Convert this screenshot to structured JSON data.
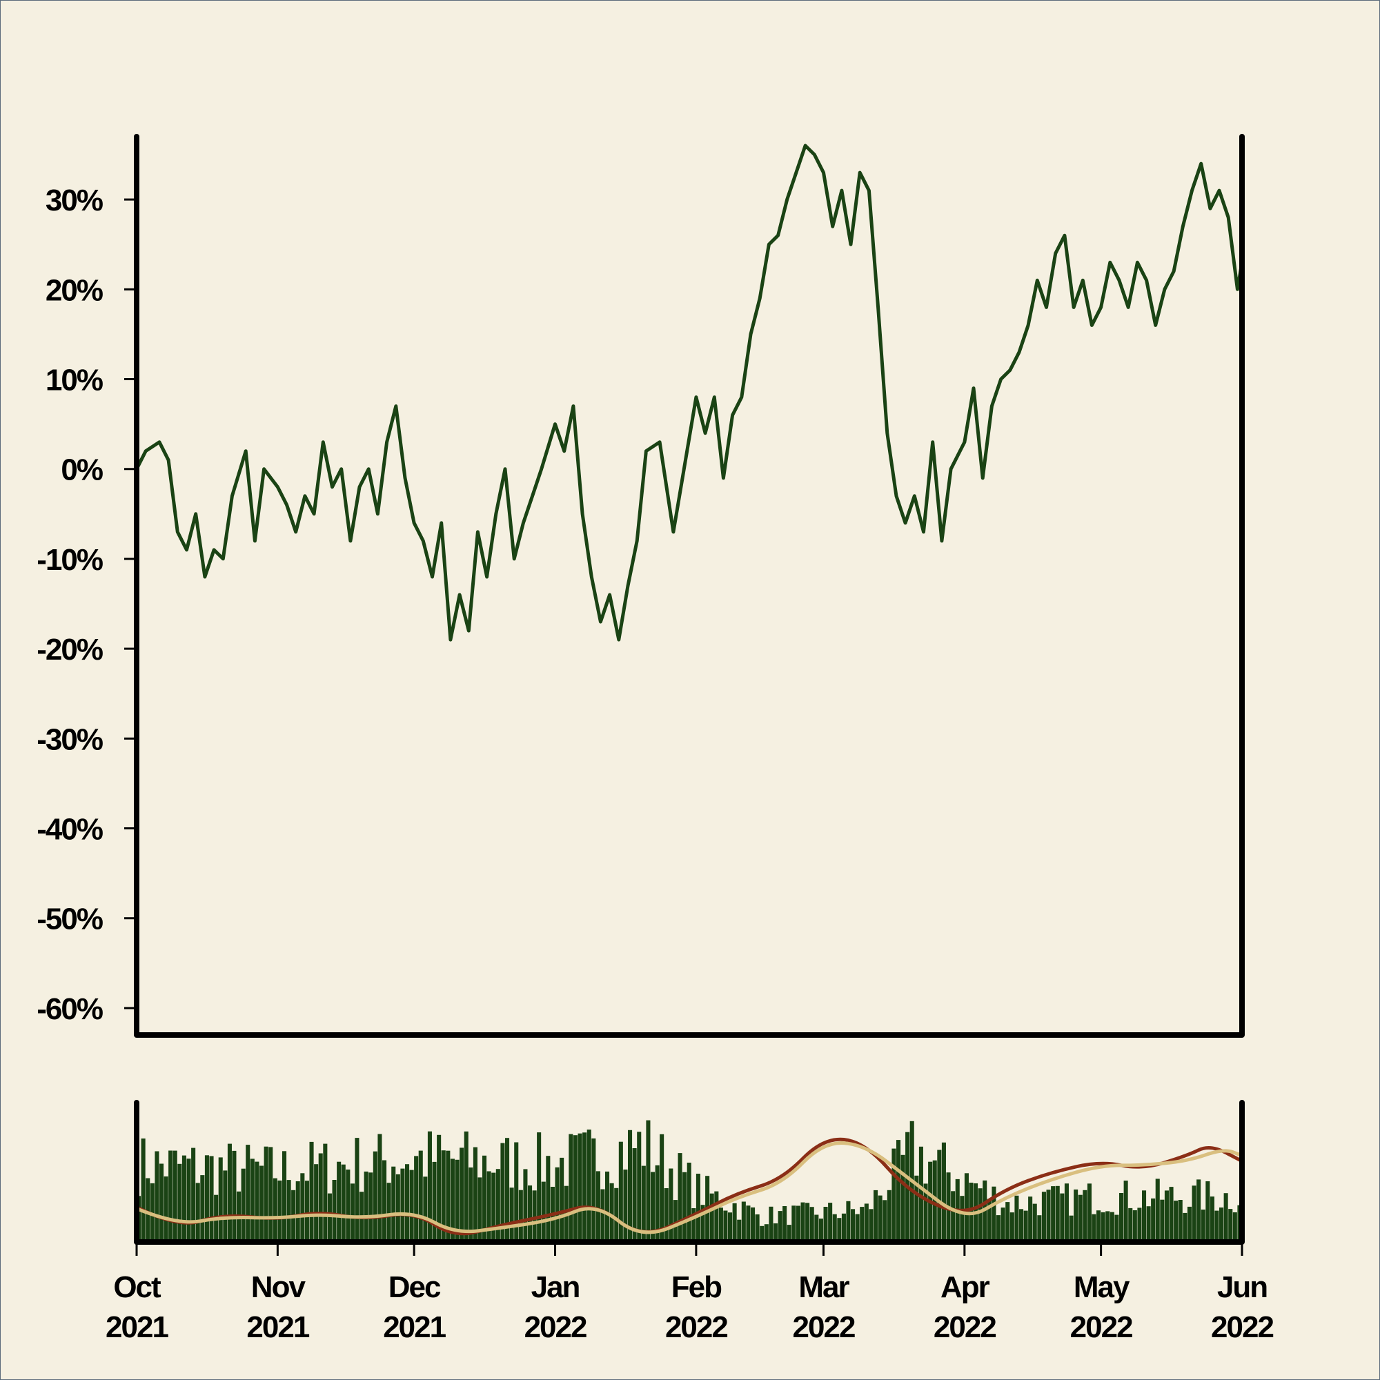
{
  "chart_data": [
    {
      "type": "line",
      "title": "",
      "xlabel": "",
      "ylabel": "",
      "ylim": [
        -0.63,
        0.37
      ],
      "yticks": [
        {
          "value": 0.3,
          "label": "30%"
        },
        {
          "value": 0.2,
          "label": "20%"
        },
        {
          "value": 0.1,
          "label": "10%"
        },
        {
          "value": 0.0,
          "label": "0%"
        },
        {
          "value": -0.1,
          "label": "-10%"
        },
        {
          "value": -0.2,
          "label": "-20%"
        },
        {
          "value": -0.3,
          "label": "-30%"
        },
        {
          "value": -0.4,
          "label": "-40%"
        },
        {
          "value": -0.5,
          "label": "-50%"
        },
        {
          "value": -0.6,
          "label": "-60%"
        }
      ],
      "xlim": [
        "2021-10-01",
        "2022-06-01"
      ],
      "color": "#1a4314",
      "series": [
        {
          "x": [
            "2021-10-01",
            "2021-10-03",
            "2021-10-06",
            "2021-10-08",
            "2021-10-10",
            "2021-10-12",
            "2021-10-14",
            "2021-10-16",
            "2021-10-18",
            "2021-10-20",
            "2021-10-22",
            "2021-10-25",
            "2021-10-27",
            "2021-10-29",
            "2021-11-01",
            "2021-11-03",
            "2021-11-05",
            "2021-11-07",
            "2021-11-09",
            "2021-11-11",
            "2021-11-13",
            "2021-11-15",
            "2021-11-17",
            "2021-11-19",
            "2021-11-21",
            "2021-11-23",
            "2021-11-25",
            "2021-11-27",
            "2021-11-29",
            "2021-12-01",
            "2021-12-03",
            "2021-12-05",
            "2021-12-07",
            "2021-12-09",
            "2021-12-11",
            "2021-12-13",
            "2021-12-15",
            "2021-12-17",
            "2021-12-19",
            "2021-12-21",
            "2021-12-23",
            "2021-12-25",
            "2021-12-27",
            "2021-12-29",
            "2022-01-01",
            "2022-01-03",
            "2022-01-05",
            "2022-01-07",
            "2022-01-09",
            "2022-01-11",
            "2022-01-13",
            "2022-01-15",
            "2022-01-17",
            "2022-01-19",
            "2022-01-21",
            "2022-01-24",
            "2022-01-27",
            "2022-01-30",
            "2022-02-01",
            "2022-02-03",
            "2022-02-05",
            "2022-02-07",
            "2022-02-09",
            "2022-02-11",
            "2022-02-13",
            "2022-02-15",
            "2022-02-17",
            "2022-02-19",
            "2022-02-21",
            "2022-02-23",
            "2022-02-25",
            "2022-02-27",
            "2022-03-01",
            "2022-03-03",
            "2022-03-05",
            "2022-03-07",
            "2022-03-09",
            "2022-03-11",
            "2022-03-13",
            "2022-03-15",
            "2022-03-17",
            "2022-03-19",
            "2022-03-21",
            "2022-03-23",
            "2022-03-25",
            "2022-03-27",
            "2022-03-29",
            "2022-04-01",
            "2022-04-03",
            "2022-04-05",
            "2022-04-07",
            "2022-04-09",
            "2022-04-11",
            "2022-04-13",
            "2022-04-15",
            "2022-04-17",
            "2022-04-19",
            "2022-04-21",
            "2022-04-23",
            "2022-04-25",
            "2022-04-27",
            "2022-04-29",
            "2022-05-01",
            "2022-05-03",
            "2022-05-05",
            "2022-05-07",
            "2022-05-09",
            "2022-05-11",
            "2022-05-13",
            "2022-05-15",
            "2022-05-17",
            "2022-05-19",
            "2022-05-21",
            "2022-05-23",
            "2022-05-25",
            "2022-05-27",
            "2022-05-29",
            "2022-05-31",
            "2022-06-01"
          ],
          "values": [
            0.0,
            0.02,
            0.03,
            0.01,
            -0.07,
            -0.09,
            -0.05,
            -0.12,
            -0.09,
            -0.1,
            -0.03,
            0.02,
            -0.08,
            0.0,
            -0.02,
            -0.04,
            -0.07,
            -0.03,
            -0.05,
            0.03,
            -0.02,
            0.0,
            -0.08,
            -0.02,
            0.0,
            -0.05,
            0.03,
            0.07,
            -0.01,
            -0.06,
            -0.08,
            -0.12,
            -0.06,
            -0.19,
            -0.14,
            -0.18,
            -0.07,
            -0.12,
            -0.05,
            0.0,
            -0.1,
            -0.06,
            -0.03,
            0.0,
            0.05,
            0.02,
            0.07,
            -0.05,
            -0.12,
            -0.17,
            -0.14,
            -0.19,
            -0.13,
            -0.08,
            0.02,
            0.03,
            -0.07,
            0.02,
            0.08,
            0.04,
            0.08,
            -0.01,
            0.06,
            0.08,
            0.15,
            0.19,
            0.25,
            0.26,
            0.3,
            0.33,
            0.36,
            0.35,
            0.33,
            0.27,
            0.31,
            0.25,
            0.33,
            0.31,
            0.18,
            0.04,
            -0.03,
            -0.06,
            -0.03,
            -0.07,
            0.03,
            -0.08,
            0.0,
            0.03,
            0.09,
            -0.01,
            0.07,
            0.1,
            0.11,
            0.13,
            0.16,
            0.21,
            0.18,
            0.24,
            0.26,
            0.18,
            0.21,
            0.16,
            0.18,
            0.23,
            0.21,
            0.18,
            0.23,
            0.21,
            0.16,
            0.2,
            0.22,
            0.27,
            0.31,
            0.34,
            0.29,
            0.31,
            0.28,
            0.2,
            0.23
          ]
        }
      ]
    },
    {
      "type": "bar",
      "title": "",
      "xlabel": "",
      "ylabel": "",
      "ylim": [
        0,
        1
      ],
      "color": "#1a4314",
      "xticks": [
        {
          "date": "2021-10-01",
          "label_month": "Oct",
          "label_year": "2021"
        },
        {
          "date": "2021-11-01",
          "label_month": "Nov",
          "label_year": "2021"
        },
        {
          "date": "2021-12-01",
          "label_month": "Dec",
          "label_year": "2021"
        },
        {
          "date": "2022-01-01",
          "label_month": "Jan",
          "label_year": "2022"
        },
        {
          "date": "2022-02-01",
          "label_month": "Feb",
          "label_year": "2022"
        },
        {
          "date": "2022-03-01",
          "label_month": "Mar",
          "label_year": "2022"
        },
        {
          "date": "2022-04-01",
          "label_month": "Apr",
          "label_year": "2022"
        },
        {
          "date": "2022-05-01",
          "label_month": "May",
          "label_year": "2022"
        },
        {
          "date": "2022-06-01",
          "label_month": "Jun",
          "label_year": "2022"
        }
      ],
      "bar_level_profile": {
        "x": [
          "2021-10-01",
          "2021-11-01",
          "2021-12-01",
          "2022-01-01",
          "2022-01-20",
          "2022-02-01",
          "2022-02-15",
          "2022-03-10",
          "2022-03-20",
          "2022-04-10",
          "2022-05-01",
          "2022-06-01"
        ],
        "values": [
          0.6,
          0.55,
          0.65,
          0.6,
          0.75,
          0.4,
          0.2,
          0.25,
          0.7,
          0.3,
          0.35,
          0.35
        ]
      },
      "series": [
        {
          "color": "#8b2e16",
          "x": [
            "2021-10-01",
            "2021-10-10",
            "2021-10-20",
            "2021-11-01",
            "2021-11-10",
            "2021-11-20",
            "2021-12-01",
            "2021-12-10",
            "2021-12-20",
            "2022-01-01",
            "2022-01-10",
            "2022-01-20",
            "2022-02-01",
            "2022-02-10",
            "2022-02-20",
            "2022-03-01",
            "2022-03-10",
            "2022-03-20",
            "2022-04-01",
            "2022-04-10",
            "2022-04-20",
            "2022-05-01",
            "2022-05-10",
            "2022-05-20",
            "2022-05-25",
            "2022-06-01"
          ],
          "values": [
            0.25,
            0.1,
            0.2,
            0.16,
            0.22,
            0.16,
            0.22,
            0.03,
            0.12,
            0.2,
            0.28,
            0.02,
            0.2,
            0.35,
            0.45,
            0.75,
            0.72,
            0.35,
            0.18,
            0.38,
            0.5,
            0.58,
            0.52,
            0.62,
            0.7,
            0.58
          ]
        },
        {
          "color": "#d9bf7f",
          "x": [
            "2021-10-01",
            "2021-10-10",
            "2021-10-20",
            "2021-11-01",
            "2021-11-10",
            "2021-11-20",
            "2021-12-01",
            "2021-12-10",
            "2021-12-20",
            "2022-01-01",
            "2022-01-10",
            "2022-01-20",
            "2022-02-01",
            "2022-02-10",
            "2022-02-20",
            "2022-03-01",
            "2022-03-10",
            "2022-03-20",
            "2022-04-01",
            "2022-04-10",
            "2022-04-20",
            "2022-05-01",
            "2022-05-10",
            "2022-05-20",
            "2022-05-28",
            "2022-06-01"
          ],
          "values": [
            0.24,
            0.12,
            0.18,
            0.17,
            0.2,
            0.17,
            0.22,
            0.06,
            0.1,
            0.16,
            0.28,
            0.02,
            0.18,
            0.32,
            0.42,
            0.72,
            0.7,
            0.45,
            0.15,
            0.32,
            0.45,
            0.55,
            0.55,
            0.58,
            0.67,
            0.62
          ]
        }
      ]
    }
  ]
}
